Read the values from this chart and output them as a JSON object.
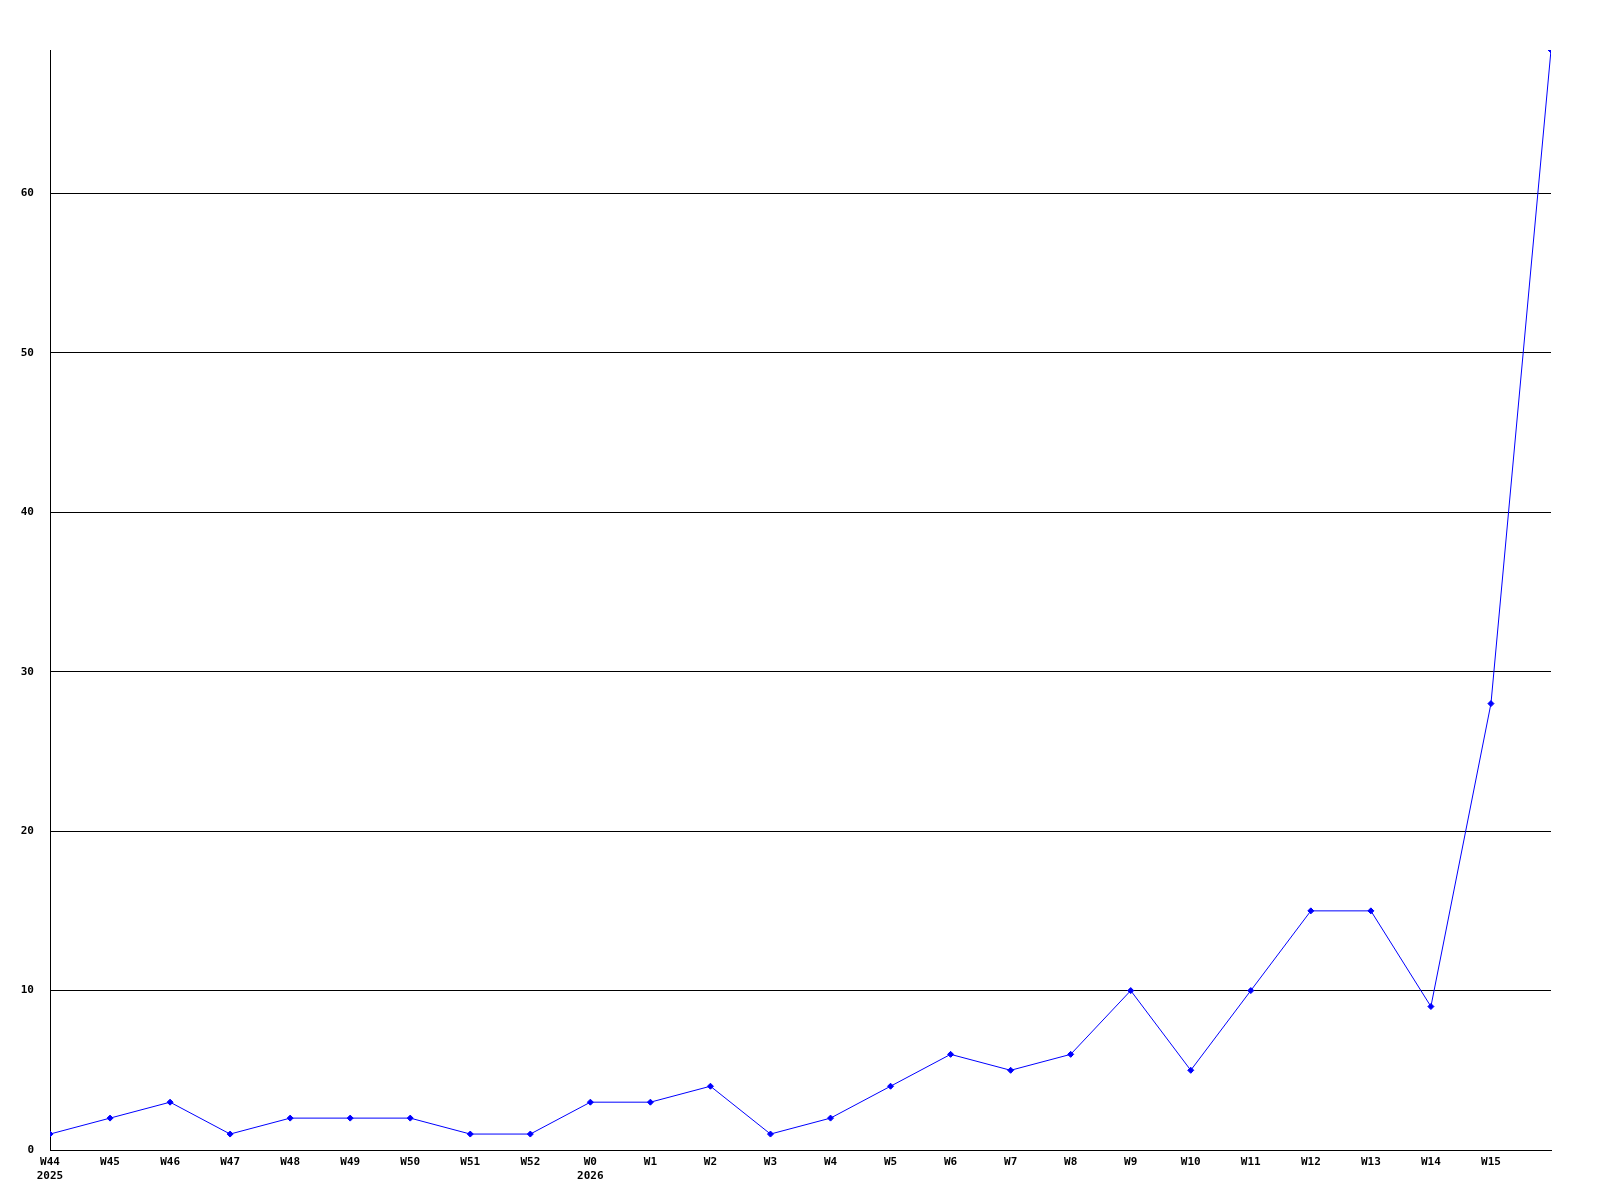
{
  "chart_data": {
    "type": "line",
    "categories": [
      "W44\n2025",
      "W45",
      "W46",
      "W47",
      "W48",
      "W49",
      "W50",
      "W51",
      "W52",
      "W0\n2026",
      "W1",
      "W2",
      "W3",
      "W4",
      "W5",
      "W6",
      "W7",
      "W8",
      "W9",
      "W10",
      "W11",
      "W12",
      "W13",
      "W14",
      "W15",
      null
    ],
    "values": [
      1,
      2,
      3,
      1,
      2,
      2,
      2,
      1,
      1,
      3,
      3,
      4,
      1,
      2,
      4,
      6,
      5,
      6,
      10,
      5,
      10,
      15,
      15,
      9,
      28,
      69
    ],
    "color": "#0000ff",
    "ylim": [
      0,
      69
    ],
    "yticks": [
      0,
      10,
      20,
      30,
      40,
      50,
      60
    ],
    "grid": "y",
    "marker": "diamond",
    "line_style": "solid"
  }
}
